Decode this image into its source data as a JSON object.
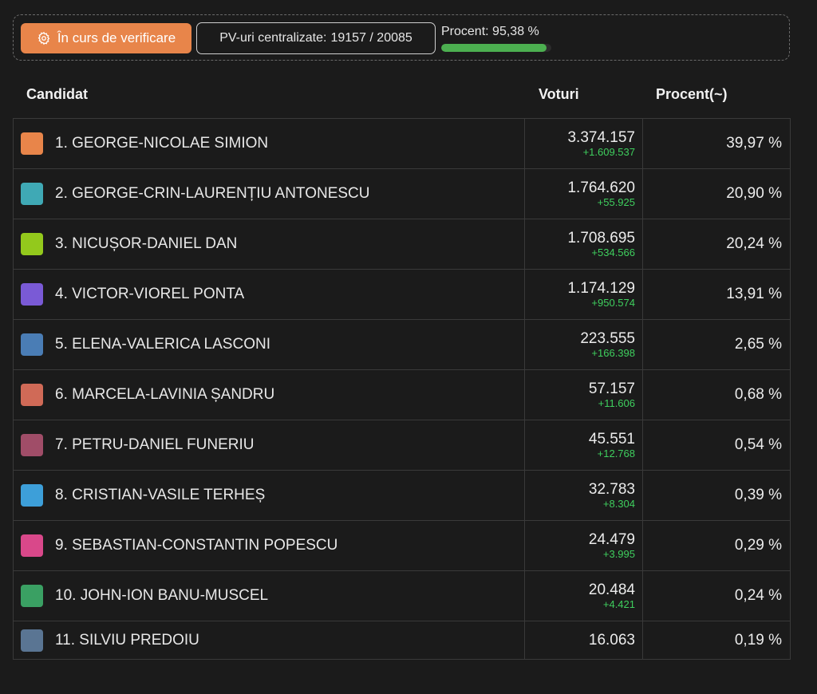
{
  "status": {
    "verify_label": "În curs de verificare",
    "pv_label": "PV-uri centralizate:",
    "pv_value": "19157 / 20085",
    "percent_label": "Procent:",
    "percent_value": "95,38 %",
    "percent_fraction": 0.9538
  },
  "table": {
    "headers": {
      "candidate": "Candidat",
      "votes": "Voturi",
      "percent": "Procent(~)"
    },
    "rows": [
      {
        "name": "1. GEORGE-NICOLAE SIMION",
        "color": "#e8854a",
        "votes": "3.374.157",
        "delta": "+1.609.537",
        "percent": "39,97 %"
      },
      {
        "name": "2. GEORGE-CRIN-LAURENȚIU ANTONESCU",
        "color": "#3fa9b5",
        "votes": "1.764.620",
        "delta": "+55.925",
        "percent": "20,90 %"
      },
      {
        "name": "3. NICUȘOR-DANIEL DAN",
        "color": "#93c91c",
        "votes": "1.708.695",
        "delta": "+534.566",
        "percent": "20,24 %"
      },
      {
        "name": "4. VICTOR-VIOREL PONTA",
        "color": "#7a5ad6",
        "votes": "1.174.129",
        "delta": "+950.574",
        "percent": "13,91 %"
      },
      {
        "name": "5. ELENA-VALERICA LASCONI",
        "color": "#4a7db5",
        "votes": "223.555",
        "delta": "+166.398",
        "percent": "2,65 %"
      },
      {
        "name": "6. MARCELA-LAVINIA ȘANDRU",
        "color": "#d06a57",
        "votes": "57.157",
        "delta": "+11.606",
        "percent": "0,68 %"
      },
      {
        "name": "7. PETRU-DANIEL FUNERIU",
        "color": "#a04d68",
        "votes": "45.551",
        "delta": "+12.768",
        "percent": "0,54 %"
      },
      {
        "name": "8. CRISTIAN-VASILE TERHEȘ",
        "color": "#3d9fd9",
        "votes": "32.783",
        "delta": "+8.304",
        "percent": "0,39 %"
      },
      {
        "name": "9. SEBASTIAN-CONSTANTIN POPESCU",
        "color": "#d9488a",
        "votes": "24.479",
        "delta": "+3.995",
        "percent": "0,29 %"
      },
      {
        "name": "10. JOHN-ION BANU-MUSCEL",
        "color": "#3aa063",
        "votes": "20.484",
        "delta": "+4.421",
        "percent": "0,24 %"
      },
      {
        "name": "11. SILVIU PREDOIU",
        "color": "#5a7593",
        "votes": "16.063",
        "delta": "",
        "percent": "0,19 %"
      }
    ]
  }
}
